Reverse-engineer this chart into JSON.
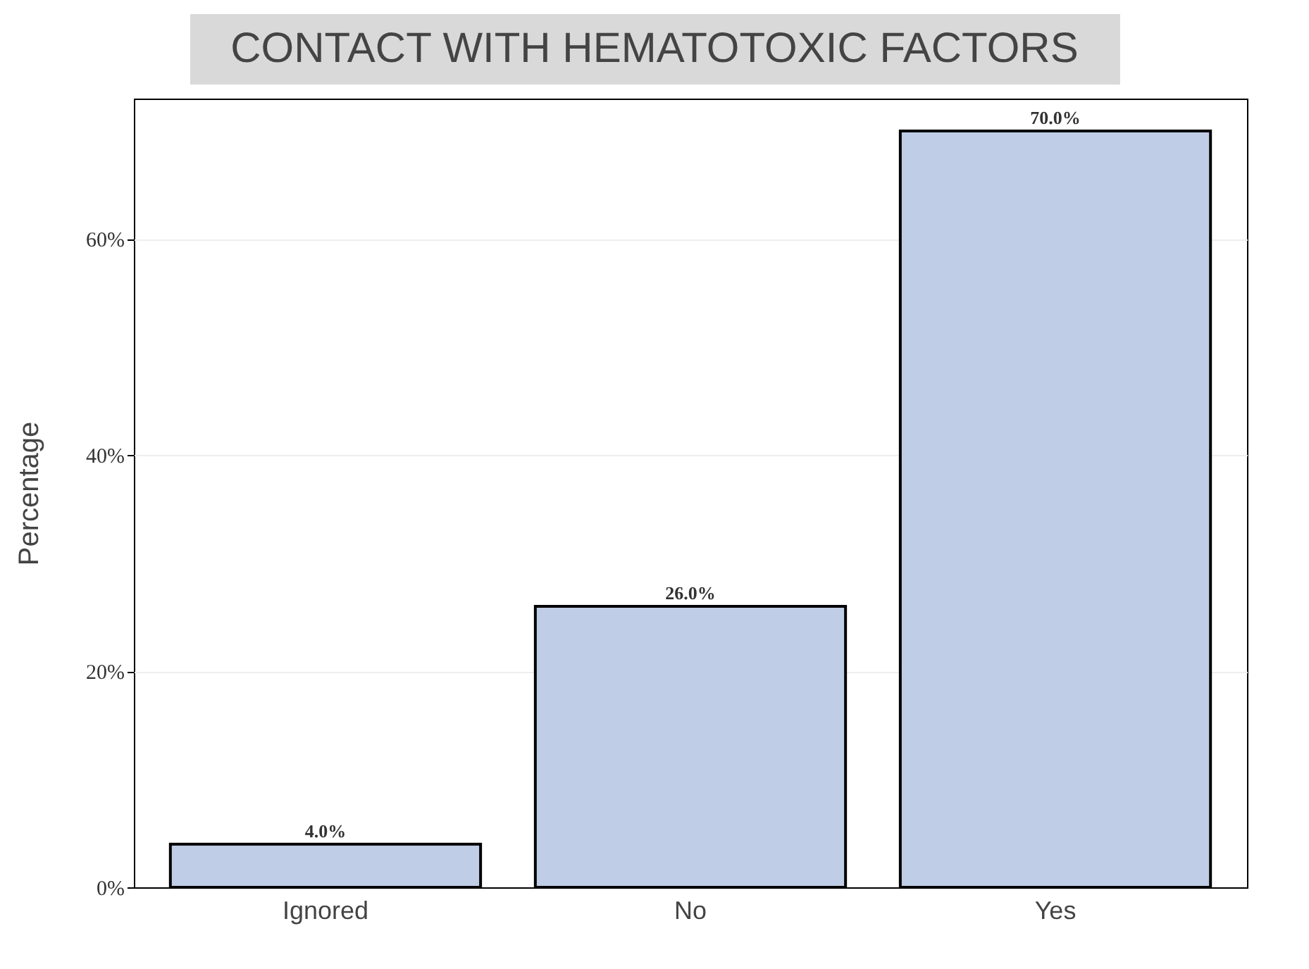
{
  "chart_data": {
    "type": "bar",
    "title": "CONTACT WITH HEMATOTOXIC FACTORS",
    "ylabel": "Percentage",
    "categories": [
      "Ignored",
      "No",
      "Yes"
    ],
    "values": [
      4.0,
      26.0,
      70.0
    ],
    "value_labels": [
      "4.0%",
      "26.0%",
      "70.0%"
    ],
    "color": "#bfcde6",
    "ylim": [
      0,
      73
    ],
    "yticks": [
      {
        "value": 0,
        "label": "0%"
      },
      {
        "value": 20,
        "label": "20%"
      },
      {
        "value": 40,
        "label": "40%"
      },
      {
        "value": 60,
        "label": "60%"
      }
    ],
    "grid": "y"
  }
}
